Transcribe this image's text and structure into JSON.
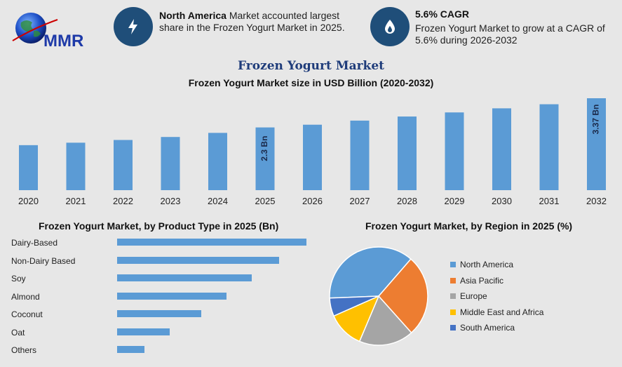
{
  "logo": {
    "text": "MMR",
    "icon": "globe-icon"
  },
  "info_cards": [
    {
      "icon": "lightning-icon",
      "bold": "North America",
      "text": " Market accounted largest share in the Frozen Yogurt Market in 2025."
    },
    {
      "icon": "flame-drop-icon",
      "bold": "5.6% CAGR",
      "text": "Frozen Yogurt Market to grow at a CAGR of 5.6% during 2026-2032"
    }
  ],
  "main_title": "Frozen Yogurt Market",
  "colors": {
    "bar": "#5b9bd5",
    "accent": "#1f4e79",
    "title": "#1f3c7a"
  },
  "chart_data": [
    {
      "type": "bar",
      "title": "Frozen Yogurt Market size in USD Billion (2020-2032)",
      "categories": [
        "2020",
        "2021",
        "2022",
        "2023",
        "2024",
        "2025",
        "2026",
        "2027",
        "2028",
        "2029",
        "2030",
        "2031",
        "2032"
      ],
      "values": [
        1.65,
        1.74,
        1.84,
        1.95,
        2.1,
        2.3,
        2.4,
        2.55,
        2.7,
        2.85,
        3.0,
        3.15,
        3.37
      ],
      "data_labels": {
        "5": "2.3 Bn",
        "12": "3.37 Bn"
      },
      "ylim": [
        0,
        3.37
      ],
      "grid": false
    },
    {
      "type": "bar",
      "orientation": "horizontal",
      "title": "Frozen Yogurt Market, by Product Type in 2025 (Bn)",
      "categories": [
        "Dairy-Based",
        "Non-Dairy Based",
        "Soy",
        "Almond",
        "Coconut",
        "Oat",
        "Others"
      ],
      "values": [
        0.9,
        0.77,
        0.64,
        0.52,
        0.4,
        0.25,
        0.13
      ],
      "grid": false
    },
    {
      "type": "pie",
      "title": "Frozen Yogurt Market, by Region in 2025 (%)",
      "categories": [
        "North America",
        "Asia Pacific",
        "Europe",
        "Middle East and Africa",
        "South America"
      ],
      "values": [
        37,
        27,
        18,
        12,
        6
      ],
      "colors": [
        "#5b9bd5",
        "#ed7d31",
        "#a5a5a5",
        "#ffc000",
        "#4472c4"
      ],
      "legend": "right"
    }
  ]
}
